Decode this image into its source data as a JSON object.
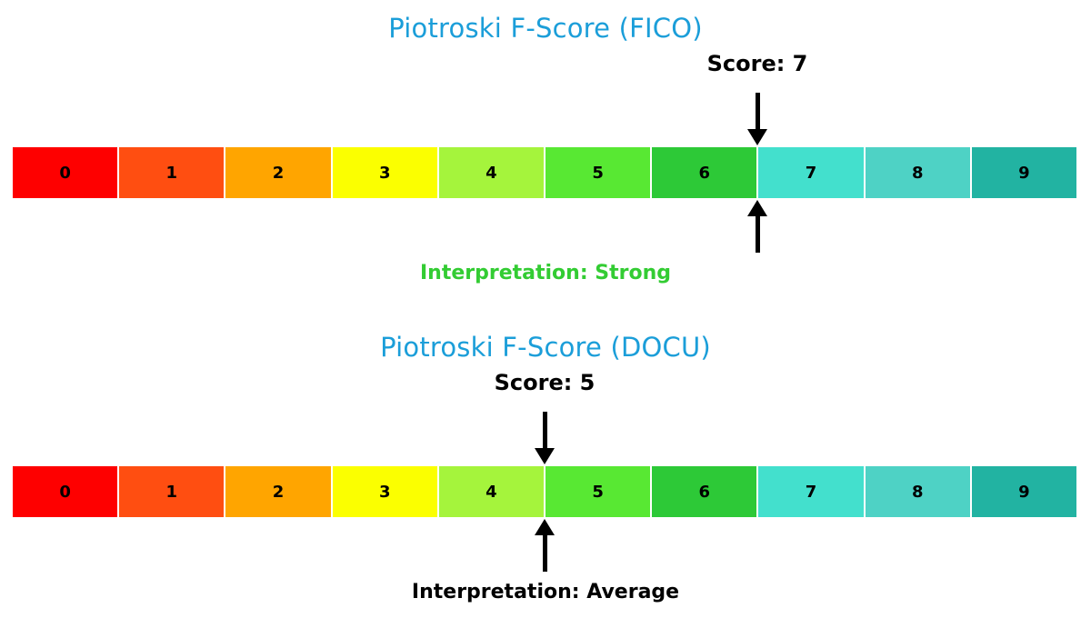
{
  "figure": {
    "background": "#ffffff"
  },
  "chart_data": [
    {
      "type": "gauge",
      "title": "Piotroski F-Score (FICO)",
      "title_color": "#1B9ED9",
      "score": 7,
      "score_max": 10,
      "score_label": "Score: 7",
      "interpretation": "Interpretation: Strong",
      "interpretation_color": "#33CC33",
      "categories": [
        "0",
        "1",
        "2",
        "3",
        "4",
        "5",
        "6",
        "7",
        "8",
        "9"
      ],
      "segment_colors": [
        "#FE0000",
        "#FF4E11",
        "#FFA500",
        "#FBFF00",
        "#A5F43C",
        "#58E833",
        "#2DC937",
        "#43E0CD",
        "#4ED2C5",
        "#22B3A2"
      ],
      "marker_style": "black arrows above and below the scale at the score position"
    },
    {
      "type": "gauge",
      "title": "Piotroski F-Score (DOCU)",
      "title_color": "#1B9ED9",
      "score": 5,
      "score_max": 10,
      "score_label": "Score: 5",
      "interpretation": "Interpretation: Average",
      "interpretation_color": "#000000",
      "categories": [
        "0",
        "1",
        "2",
        "3",
        "4",
        "5",
        "6",
        "7",
        "8",
        "9"
      ],
      "segment_colors": [
        "#FE0000",
        "#FF4E11",
        "#FFA500",
        "#FBFF00",
        "#A5F43C",
        "#58E833",
        "#2DC937",
        "#43E0CD",
        "#4ED2C5",
        "#22B3A2"
      ],
      "marker_style": "black arrows above and below the scale at the score position"
    }
  ]
}
